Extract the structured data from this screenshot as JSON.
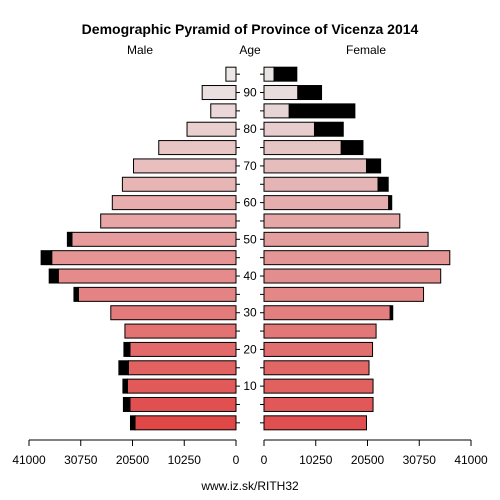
{
  "chart_data": {
    "type": "population-pyramid",
    "title": "Demographic Pyramid of Province of Vicenza 2014",
    "left_label": "Male",
    "center_label": "Age",
    "right_label": "Female",
    "footer": "www.iz.sk/RITH32",
    "x_ticks_left": [
      "41000",
      "30750",
      "20500",
      "10250",
      "0"
    ],
    "x_ticks_right": [
      "0",
      "10250",
      "20500",
      "30750",
      "41000"
    ],
    "x_tick_values": [
      41000,
      30750,
      20500,
      10250,
      0
    ],
    "xlim": [
      0,
      41000
    ],
    "age_groups": [
      "0-4",
      "5-9",
      "10-14",
      "15-19",
      "20-24",
      "25-29",
      "30-34",
      "35-39",
      "40-44",
      "45-49",
      "50-54",
      "55-59",
      "60-64",
      "65-69",
      "70-74",
      "75-79",
      "80-84",
      "85-89",
      "90-94",
      "95+"
    ],
    "age_tick_labels": [
      "10",
      "20",
      "30",
      "40",
      "50",
      "60",
      "70",
      "80",
      "90"
    ],
    "age_tick_group_index": [
      2,
      4,
      6,
      8,
      10,
      12,
      14,
      16,
      18
    ],
    "male_values": [
      20000,
      21000,
      21500,
      21300,
      21000,
      22000,
      24800,
      31200,
      35200,
      36500,
      32500,
      26800,
      24500,
      22500,
      20300,
      15300,
      9700,
      5000,
      6700,
      2000
    ],
    "male_excess": [
      900,
      1300,
      900,
      1900,
      1200,
      0,
      0,
      900,
      1800,
      2100,
      900,
      0,
      0,
      0,
      0,
      0,
      0,
      0,
      0,
      0
    ],
    "female_values": [
      20300,
      21600,
      21600,
      20800,
      21500,
      22200,
      25000,
      31600,
      35000,
      36800,
      32500,
      26900,
      24700,
      22600,
      20300,
      15300,
      10000,
      5000,
      6700,
      2000
    ],
    "female_excess": [
      0,
      0,
      0,
      0,
      0,
      0,
      500,
      0,
      0,
      0,
      0,
      0,
      600,
      2000,
      2800,
      4300,
      5700,
      13000,
      4700,
      4500
    ],
    "male_color_bottom": "#e04848",
    "male_color_top": "#ece8e8",
    "female_color_bottom": "#e05050",
    "female_color_top": "#e8e4e4",
    "excess_color": "#000000"
  }
}
